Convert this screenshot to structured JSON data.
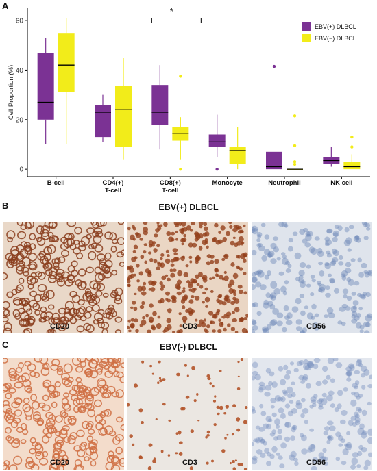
{
  "panels": {
    "a_letter": "A",
    "b_letter": "B",
    "c_letter": "C"
  },
  "chart_data": {
    "type": "box",
    "ylabel": "Cell Proportion (%)",
    "ylim": [
      -3,
      65
    ],
    "yticks": [
      "0",
      "20",
      "40",
      "60"
    ],
    "categories": [
      "B-cell",
      "CD4(+)\nT-cell",
      "CD8(+)\nT-cell",
      "Monocyte",
      "Neutrophil",
      "NK cell"
    ],
    "series": [
      {
        "name": "EBV(+) DLBCL",
        "color": "#7b3294",
        "boxes": [
          {
            "q1": 20,
            "median": 27,
            "q3": 47,
            "min": 10,
            "max": 53,
            "outliers": []
          },
          {
            "q1": 13,
            "median": 23,
            "q3": 26,
            "min": 11,
            "max": 30,
            "outliers": []
          },
          {
            "q1": 18,
            "median": 23,
            "q3": 34,
            "min": 8,
            "max": 42,
            "outliers": []
          },
          {
            "q1": 9,
            "median": 11,
            "q3": 14,
            "min": 5,
            "max": 22,
            "outliers": [
              0
            ]
          },
          {
            "q1": 0,
            "median": 1,
            "q3": 7,
            "min": 0,
            "max": 7,
            "outliers": [
              41.5
            ]
          },
          {
            "q1": 2,
            "median": 3.5,
            "q3": 5,
            "min": 1,
            "max": 9,
            "outliers": []
          }
        ]
      },
      {
        "name": "EBV(−) DLBCL",
        "color": "#f2ec1a",
        "boxes": [
          {
            "q1": 31,
            "median": 42,
            "q3": 55,
            "min": 10,
            "max": 61,
            "outliers": []
          },
          {
            "q1": 9,
            "median": 24,
            "q3": 33.5,
            "min": 4,
            "max": 45,
            "outliers": []
          },
          {
            "q1": 11.5,
            "median": 14.5,
            "q3": 17,
            "min": 4,
            "max": 21,
            "outliers": [
              37.5,
              0
            ]
          },
          {
            "q1": 2,
            "median": 7.5,
            "q3": 9,
            "min": 0,
            "max": 17,
            "outliers": []
          },
          {
            "q1": 0,
            "median": 0,
            "q3": 0,
            "min": 0,
            "max": 0,
            "outliers": [
              21.5,
              9.5,
              3,
              2
            ]
          },
          {
            "q1": 0,
            "median": 1,
            "q3": 3,
            "min": 0,
            "max": 6,
            "outliers": [
              13,
              9
            ]
          }
        ]
      }
    ],
    "annotation": {
      "text": "*",
      "between_category": 2
    }
  },
  "ihc": {
    "row_b_title": "EBV(+) DLBCL",
    "row_c_title": "EBV(-) DLBCL",
    "row_b": [
      {
        "label": "CD20",
        "style": "dense-membrane",
        "bg": "#e9d8c8",
        "stain": "#8a3d1c"
      },
      {
        "label": "CD3",
        "style": "dense-dots",
        "bg": "#ead6c4",
        "stain": "#93401b"
      },
      {
        "label": "CD56",
        "style": "negative",
        "bg": "#dfe4ec",
        "stain": "#6d88b8"
      }
    ],
    "row_c": [
      {
        "label": "CD20",
        "style": "orange-membrane",
        "bg": "#f3dccb",
        "stain": "#cf6f43"
      },
      {
        "label": "CD3",
        "style": "sparse-dots",
        "bg": "#ebe7e2",
        "stain": "#b4542a"
      },
      {
        "label": "CD56",
        "style": "negative",
        "bg": "#e3e7ee",
        "stain": "#7790bf"
      }
    ]
  }
}
